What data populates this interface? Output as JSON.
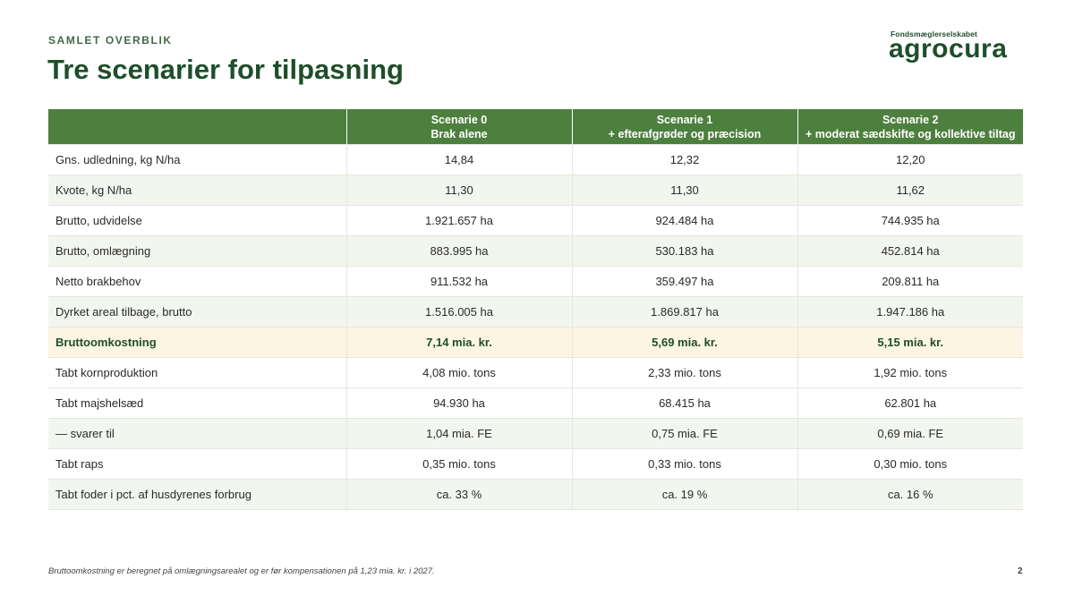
{
  "header": {
    "kicker": "SAMLET OVERBLIK",
    "title": "Tre scenarier for tilpasning"
  },
  "logo": {
    "subtitle": "Fondsmæglerselskabet",
    "wordmark": "agrocura",
    "color": "#1f4e2a"
  },
  "table": {
    "columns": [
      {
        "line1": "",
        "line2": ""
      },
      {
        "line1": "Scenarie 0",
        "line2": "Brak alene"
      },
      {
        "line1": "Scenarie 1",
        "line2": "+ efterafgrøder og præcision"
      },
      {
        "line1": "Scenarie 2",
        "line2": "+ moderat sædskifte og kollektive tiltag"
      }
    ],
    "rows": [
      {
        "label": "Gns. udledning, kg N/ha",
        "s0": "14,84",
        "s1": "12,32",
        "s2": "12,20"
      },
      {
        "label": "Kvote, kg N/ha",
        "s0": "11,30",
        "s1": "11,30",
        "s2": "11,62"
      },
      {
        "label": "Brutto, udvidelse",
        "s0": "1.921.657 ha",
        "s1": "924.484 ha",
        "s2": "744.935 ha"
      },
      {
        "label": "Brutto, omlægning",
        "s0": "883.995 ha",
        "s1": "530.183 ha",
        "s2": "452.814 ha"
      },
      {
        "label": "Netto brakbehov",
        "s0": "911.532 ha",
        "s1": "359.497 ha",
        "s2": "209.811 ha"
      },
      {
        "label": "Dyrket areal tilbage, brutto",
        "s0": "1.516.005 ha",
        "s1": "1.869.817 ha",
        "s2": "1.947.186 ha"
      },
      {
        "label": "Bruttoomkostning",
        "s0": "7,14 mia. kr.",
        "s1": "5,69 mia. kr.",
        "s2": "5,15 mia. kr."
      },
      {
        "label": "Tabt kornproduktion",
        "s0": "4,08 mio. tons",
        "s1": "2,33 mio. tons",
        "s2": "1,92 mio. tons"
      },
      {
        "label": "Tabt majshelsæd",
        "s0": "94.930 ha",
        "s1": "68.415 ha",
        "s2": "62.801 ha"
      },
      {
        "label": "— svarer til",
        "s0": "1,04 mia. FE",
        "s1": "0,75 mia. FE",
        "s2": "0,69 mia. FE"
      },
      {
        "label": "Tabt raps",
        "s0": "0,35 mio. tons",
        "s1": "0,33 mio. tons",
        "s2": "0,30 mio. tons"
      },
      {
        "label": "Tabt foder i pct. af husdyrenes forbrug",
        "s0": "ca. 33 %",
        "s1": "ca. 19 %",
        "s2": "ca. 16 %"
      }
    ],
    "colors": {
      "header_bg": "#4d7f3e",
      "highlight_bg": "#fdf5e3",
      "stripe_bg": "#f2f6ef"
    }
  },
  "footer": {
    "note": "Bruttoomkostning er beregnet på omlægningsarealet og er før kompensationen på 1,23 mia. kr. i 2027.",
    "page_number": "2"
  }
}
